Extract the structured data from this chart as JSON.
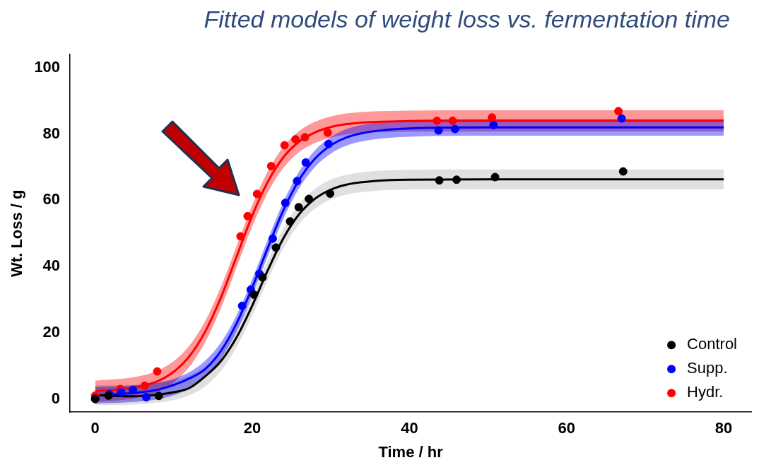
{
  "chart_data": {
    "type": "scatter",
    "title": "Fitted models of weight loss vs. fermentation time",
    "xlabel": "Time / hr",
    "ylabel": "Wt. Loss / g",
    "xlim": [
      -3.2,
      83.5
    ],
    "ylim": [
      -4,
      104
    ],
    "xticks": [
      0,
      20,
      40,
      60,
      80
    ],
    "yticks": [
      0,
      20,
      40,
      60,
      80,
      100
    ],
    "grid": false,
    "legend": "bottom right",
    "marker": "circle",
    "series": [
      {
        "type": "line",
        "marker": "none",
        "color": "#000000",
        "x": [
          0,
          5,
          8,
          10,
          12,
          14,
          16,
          18,
          20,
          22,
          24,
          26,
          28,
          30,
          32,
          35,
          40,
          50,
          60,
          70,
          80
        ],
        "values": [
          1.1,
          0.8,
          1.3,
          2,
          3.3,
          6.8,
          11.4,
          18.6,
          28.2,
          39,
          48.7,
          55.9,
          60.5,
          63.2,
          64.7,
          65.7,
          66.2,
          66.3,
          66.3,
          66.3,
          66.3
        ],
        "lower": [
          -1.9,
          -1.7,
          -1.1,
          -0.4,
          1.1,
          3.8,
          8.4,
          15.6,
          25.2,
          36,
          45.7,
          52.9,
          57.5,
          60.2,
          61.7,
          62.7,
          63.2,
          63.3,
          63.3,
          63.3,
          63.3
        ],
        "upper": [
          4.1,
          4.3,
          4.9,
          5.6,
          7.1,
          9.8,
          14.4,
          21.6,
          31.2,
          42,
          51.7,
          58.9,
          63.5,
          66.2,
          67.7,
          68.7,
          69.2,
          69.3,
          69.3,
          69.3,
          69.3
        ]
      },
      {
        "type": "line",
        "marker": "none",
        "color": "#0000ff",
        "x": [
          0,
          5,
          8,
          10,
          12,
          14,
          16,
          18,
          20,
          22,
          24,
          26,
          28,
          30,
          32,
          35,
          40,
          50,
          60,
          70,
          80
        ],
        "values": [
          1.1,
          1.8,
          2.8,
          4.2,
          6.2,
          9,
          14.5,
          22.8,
          33.7,
          45.8,
          57.2,
          66.3,
          72.6,
          76.6,
          79,
          80.7,
          81.7,
          82,
          82,
          82,
          82
        ],
        "lower": [
          -1.4,
          -0.9,
          -0.1,
          1.1,
          3.1,
          6.5,
          12,
          20.3,
          31.2,
          43.3,
          54.7,
          63.8,
          70.1,
          74.1,
          76.5,
          78.2,
          79.2,
          79.5,
          79.5,
          79.5,
          79.5
        ],
        "upper": [
          3.6,
          4.1,
          4.9,
          6.1,
          8.1,
          11.5,
          17,
          25.3,
          36.2,
          48.3,
          59.7,
          68.8,
          75.1,
          79.1,
          81.5,
          83.2,
          84.2,
          84.5,
          84.5,
          84.5,
          84.5
        ]
      },
      {
        "type": "line",
        "marker": "none",
        "color": "#ff0000",
        "x": [
          0,
          5,
          8,
          10,
          12,
          14,
          16,
          18,
          20,
          22,
          24,
          26,
          28,
          30,
          32,
          35,
          40,
          50,
          60,
          70,
          80
        ],
        "values": [
          2.3,
          3.4,
          5.4,
          8.2,
          12.9,
          20.3,
          30.6,
          43,
          55.4,
          65.7,
          73.1,
          77.8,
          80.5,
          82.1,
          83,
          83.6,
          83.9,
          84,
          84,
          84,
          84
        ],
        "lower": [
          -0.9,
          0.2,
          2.2,
          5,
          9.7,
          17.1,
          27.4,
          39.8,
          52.2,
          62.5,
          69.9,
          74.6,
          77.3,
          78.9,
          79.8,
          80.4,
          80.7,
          80.8,
          80.8,
          80.8,
          80.8
        ],
        "upper": [
          5.5,
          6.6,
          8.6,
          11.4,
          16.1,
          23.5,
          33.8,
          46.2,
          58.6,
          68.9,
          76.3,
          81,
          83.7,
          85.3,
          86.2,
          86.8,
          87.1,
          87.2,
          87.2,
          87.2,
          87.2
        ]
      },
      {
        "type": "scatter",
        "name": "Control",
        "color": "#000000",
        "x": [
          0,
          1.7,
          8.1,
          20.2,
          21.3,
          23,
          24.8,
          25.9,
          27.2,
          29.9,
          43.8,
          46,
          50.9,
          67.2
        ],
        "values": [
          0,
          1,
          0.9,
          31.5,
          36.7,
          45.7,
          53.6,
          57.9,
          60.4,
          62,
          66,
          66.2,
          67,
          68.7
        ]
      },
      {
        "type": "scatter",
        "name": "Supp.",
        "color": "#0000ff",
        "x": [
          0,
          1.8,
          3.3,
          4.8,
          6.5,
          18.7,
          19.8,
          20.9,
          22.6,
          24.2,
          25.7,
          26.8,
          29.7,
          43.7,
          45.8,
          50.7,
          67
        ],
        "values": [
          0,
          1.4,
          2,
          2.7,
          0.5,
          28.1,
          33,
          37.8,
          48.4,
          59.2,
          65.8,
          71.4,
          77,
          81.1,
          81.5,
          82.7,
          84.7
        ]
      },
      {
        "type": "scatter",
        "name": "Hydr.",
        "color": "#ff0000",
        "x": [
          0,
          3.2,
          6.3,
          7.9,
          18.5,
          19.4,
          20.6,
          22.4,
          24.1,
          25.5,
          26.7,
          29.6,
          43.5,
          45.5,
          50.5,
          66.6
        ],
        "values": [
          1,
          3,
          4,
          8.3,
          49.1,
          55.2,
          61.9,
          70.3,
          76.6,
          78.4,
          79,
          80.4,
          84,
          84,
          85,
          86.9
        ]
      }
    ]
  }
}
